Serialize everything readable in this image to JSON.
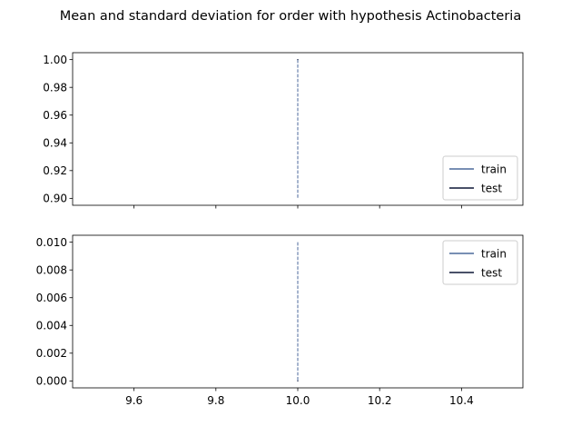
{
  "chart_data": [
    {
      "type": "line",
      "title": "Mean and standard deviation for order with hypothesis Actinobacteria",
      "xlim": [
        9.45,
        10.55
      ],
      "ylim": [
        0.895,
        1.005
      ],
      "yticks": [
        "0.90",
        "0.92",
        "0.94",
        "0.96",
        "0.98",
        "1.00"
      ],
      "xticks": [
        9.6,
        9.8,
        10.0,
        10.2,
        10.4
      ],
      "xtick_labels_shown": false,
      "legend_location": "lower-right",
      "series": [
        {
          "name": "train",
          "color": "#4c6a9c",
          "x": [
            10.0
          ],
          "y": [
            1.0
          ]
        },
        {
          "name": "test",
          "color": "#0d1636",
          "x": [
            10.0
          ],
          "y": [
            1.0
          ]
        }
      ],
      "vlines": [
        {
          "x": 10.0,
          "ymin": 0.9,
          "ymax": 1.0,
          "style": "dashed",
          "color": "#4c6a9c"
        }
      ]
    },
    {
      "type": "line",
      "xlim": [
        9.45,
        10.55
      ],
      "ylim": [
        -0.0005,
        0.0105
      ],
      "yticks": [
        "0.000",
        "0.002",
        "0.004",
        "0.006",
        "0.008",
        "0.010"
      ],
      "xticks": [
        9.6,
        9.8,
        10.0,
        10.2,
        10.4
      ],
      "xtick_labels": [
        "9.6",
        "9.8",
        "10.0",
        "10.2",
        "10.4"
      ],
      "legend_location": "upper-right",
      "series": [
        {
          "name": "train",
          "color": "#4c6a9c",
          "x": [
            10.0
          ],
          "y": [
            0.0
          ]
        },
        {
          "name": "test",
          "color": "#0d1636",
          "x": [
            10.0
          ],
          "y": [
            0.0
          ]
        }
      ],
      "vlines": [
        {
          "x": 10.0,
          "ymin": 0.0,
          "ymax": 0.01,
          "style": "dashed",
          "color": "#4c6a9c"
        }
      ]
    }
  ]
}
